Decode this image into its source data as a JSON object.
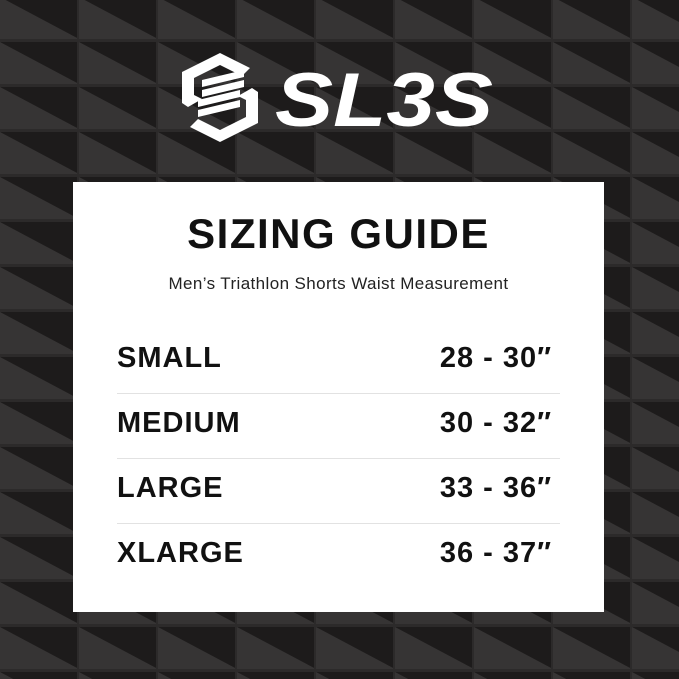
{
  "brand": {
    "name": "SL3S",
    "logo_icon": "hexagon-s-stripes-icon"
  },
  "colors": {
    "background": "#2a2828",
    "background_dark": "#1c1a1a",
    "card": "#ffffff",
    "text": "#111111"
  },
  "guide": {
    "title": "SIZING GUIDE",
    "subtitle": "Men’s Triathlon Shorts Waist Measurement",
    "rows": [
      {
        "size": "SMALL",
        "range": "28 - 30″"
      },
      {
        "size": "MEDIUM",
        "range": "30 - 32″"
      },
      {
        "size": "LARGE",
        "range": "33 - 36″"
      },
      {
        "size": "XLARGE",
        "range": "36 - 37″"
      }
    ]
  }
}
